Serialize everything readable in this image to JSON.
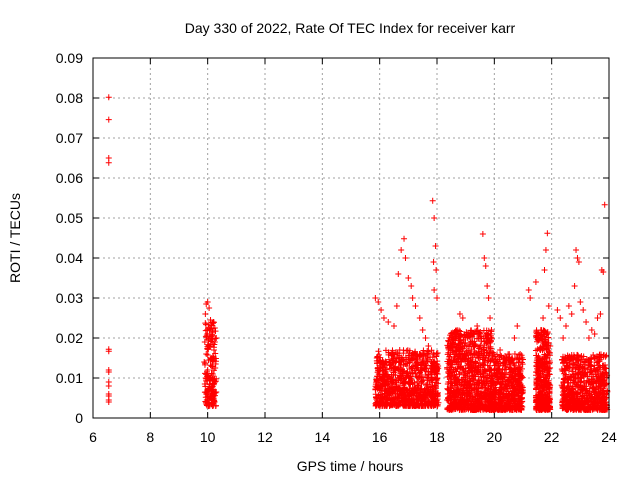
{
  "chart_data": {
    "type": "scatter",
    "title": "Day 330 of 2022, Rate Of TEC Index for receiver karr",
    "xlabel": "GPS time / hours",
    "ylabel": "ROTI / TECUs",
    "xlim": [
      6,
      24
    ],
    "ylim": [
      0,
      0.09
    ],
    "x_ticks": [
      "6",
      "8",
      "10",
      "12",
      "14",
      "16",
      "18",
      "20",
      "22",
      "24"
    ],
    "y_ticks": [
      "0",
      "0.01",
      "0.02",
      "0.03",
      "0.04",
      "0.05",
      "0.06",
      "0.07",
      "0.08",
      "0.09"
    ],
    "grid": true,
    "marker": "+",
    "series_color": "#ff0000",
    "points": [
      [
        6.55,
        0.0802
      ],
      [
        6.55,
        0.0746
      ],
      [
        6.55,
        0.065
      ],
      [
        6.55,
        0.0638
      ],
      [
        6.55,
        0.0172
      ],
      [
        6.55,
        0.0167
      ],
      [
        6.55,
        0.012
      ],
      [
        6.55,
        0.0115
      ],
      [
        6.55,
        0.009
      ],
      [
        6.55,
        0.008
      ],
      [
        6.55,
        0.006
      ],
      [
        6.55,
        0.0055
      ],
      [
        6.55,
        0.0045
      ],
      [
        6.55,
        0.004
      ],
      [
        9.95,
        0.0285
      ],
      [
        10.0,
        0.029
      ],
      [
        10.05,
        0.0275
      ],
      [
        9.92,
        0.026
      ],
      [
        10.1,
        0.0245
      ],
      [
        10.2,
        0.024
      ],
      [
        10.25,
        0.0225
      ],
      [
        9.98,
        0.022
      ],
      [
        10.15,
        0.0205
      ],
      [
        10.3,
        0.02
      ],
      [
        9.9,
        0.019
      ],
      [
        10.05,
        0.018
      ],
      [
        10.22,
        0.017
      ],
      [
        9.95,
        0.016
      ],
      [
        10.12,
        0.015
      ],
      [
        9.88,
        0.014
      ],
      [
        10.28,
        0.0135
      ],
      [
        10.0,
        0.012
      ],
      [
        10.18,
        0.011
      ],
      [
        9.93,
        0.01
      ],
      [
        10.08,
        0.0095
      ],
      [
        10.25,
        0.009
      ],
      [
        9.9,
        0.0085
      ],
      [
        10.15,
        0.008
      ],
      [
        10.02,
        0.007
      ],
      [
        10.3,
        0.0065
      ],
      [
        9.95,
        0.006
      ],
      [
        10.2,
        0.0055
      ],
      [
        10.1,
        0.005
      ],
      [
        9.97,
        0.0045
      ],
      [
        10.24,
        0.004
      ],
      [
        10.05,
        0.0035
      ],
      [
        10.28,
        0.003
      ],
      [
        15.85,
        0.03
      ],
      [
        15.95,
        0.029
      ],
      [
        16.05,
        0.027
      ],
      [
        16.15,
        0.025
      ],
      [
        16.3,
        0.024
      ],
      [
        16.5,
        0.023
      ],
      [
        16.6,
        0.028
      ],
      [
        16.65,
        0.036
      ],
      [
        16.75,
        0.042
      ],
      [
        16.85,
        0.0448
      ],
      [
        16.9,
        0.04
      ],
      [
        17.0,
        0.035
      ],
      [
        17.1,
        0.033
      ],
      [
        17.15,
        0.03
      ],
      [
        17.25,
        0.028
      ],
      [
        17.4,
        0.025
      ],
      [
        17.5,
        0.022
      ],
      [
        17.6,
        0.02
      ],
      [
        17.7,
        0.018
      ],
      [
        17.85,
        0.0543
      ],
      [
        17.9,
        0.05
      ],
      [
        17.95,
        0.043
      ],
      [
        17.88,
        0.039
      ],
      [
        17.97,
        0.037
      ],
      [
        17.9,
        0.032
      ],
      [
        18.0,
        0.03
      ],
      [
        15.9,
        0.015
      ],
      [
        16.0,
        0.01
      ],
      [
        16.1,
        0.008
      ],
      [
        16.2,
        0.012
      ],
      [
        16.35,
        0.006
      ],
      [
        16.45,
        0.014
      ],
      [
        16.55,
        0.009
      ],
      [
        16.7,
        0.017
      ],
      [
        16.8,
        0.007
      ],
      [
        16.95,
        0.013
      ],
      [
        17.05,
        0.01
      ],
      [
        17.2,
        0.016
      ],
      [
        17.3,
        0.008
      ],
      [
        17.45,
        0.012
      ],
      [
        17.55,
        0.005
      ],
      [
        17.65,
        0.015
      ],
      [
        17.75,
        0.009
      ],
      [
        17.82,
        0.013
      ],
      [
        17.92,
        0.006
      ],
      [
        18.02,
        0.011
      ],
      [
        18.4,
        0.005
      ],
      [
        18.5,
        0.003
      ],
      [
        18.6,
        0.018
      ],
      [
        18.7,
        0.022
      ],
      [
        18.8,
        0.026
      ],
      [
        18.9,
        0.025
      ],
      [
        19.0,
        0.02
      ],
      [
        19.1,
        0.015
      ],
      [
        19.2,
        0.021
      ],
      [
        19.3,
        0.018
      ],
      [
        19.4,
        0.023
      ],
      [
        19.5,
        0.02
      ],
      [
        19.6,
        0.046
      ],
      [
        19.65,
        0.04
      ],
      [
        19.7,
        0.038
      ],
      [
        19.75,
        0.033
      ],
      [
        19.8,
        0.03
      ],
      [
        19.85,
        0.025
      ],
      [
        19.9,
        0.022
      ],
      [
        18.45,
        0.012
      ],
      [
        18.55,
        0.008
      ],
      [
        18.65,
        0.01
      ],
      [
        18.75,
        0.006
      ],
      [
        18.85,
        0.014
      ],
      [
        18.95,
        0.009
      ],
      [
        19.05,
        0.011
      ],
      [
        19.15,
        0.007
      ],
      [
        19.25,
        0.013
      ],
      [
        19.35,
        0.005
      ],
      [
        19.45,
        0.012
      ],
      [
        19.55,
        0.008
      ],
      [
        19.7,
        0.01
      ],
      [
        19.8,
        0.006
      ],
      [
        19.95,
        0.015
      ],
      [
        20.1,
        0.011
      ],
      [
        20.2,
        0.017
      ],
      [
        20.3,
        0.009
      ],
      [
        20.4,
        0.014
      ],
      [
        20.5,
        0.006
      ],
      [
        20.6,
        0.012
      ],
      [
        20.7,
        0.02
      ],
      [
        20.8,
        0.023
      ],
      [
        20.9,
        0.016
      ],
      [
        20.65,
        0.008
      ],
      [
        20.75,
        0.004
      ],
      [
        20.85,
        0.011
      ],
      [
        21.2,
        0.032
      ],
      [
        21.25,
        0.03
      ],
      [
        21.45,
        0.034
      ],
      [
        21.6,
        0.02
      ],
      [
        21.7,
        0.025
      ],
      [
        21.75,
        0.037
      ],
      [
        21.8,
        0.042
      ],
      [
        21.85,
        0.0462
      ],
      [
        21.9,
        0.028
      ],
      [
        21.95,
        0.018
      ],
      [
        21.5,
        0.015
      ],
      [
        21.55,
        0.01
      ],
      [
        21.65,
        0.006
      ],
      [
        21.75,
        0.012
      ],
      [
        21.85,
        0.008
      ],
      [
        21.92,
        0.003
      ],
      [
        21.58,
        0.005
      ],
      [
        21.68,
        0.017
      ],
      [
        21.8,
        0.014
      ],
      [
        22.2,
        0.027
      ],
      [
        22.3,
        0.025
      ],
      [
        22.4,
        0.02
      ],
      [
        22.5,
        0.023
      ],
      [
        22.6,
        0.028
      ],
      [
        22.7,
        0.026
      ],
      [
        22.8,
        0.033
      ],
      [
        22.85,
        0.042
      ],
      [
        22.9,
        0.04
      ],
      [
        22.95,
        0.039
      ],
      [
        23.0,
        0.029
      ],
      [
        23.1,
        0.027
      ],
      [
        23.2,
        0.024
      ],
      [
        23.3,
        0.02
      ],
      [
        23.4,
        0.022
      ],
      [
        23.5,
        0.021
      ],
      [
        23.6,
        0.025
      ],
      [
        23.7,
        0.026
      ],
      [
        23.75,
        0.037
      ],
      [
        23.8,
        0.0365
      ],
      [
        23.85,
        0.0533
      ],
      [
        22.45,
        0.012
      ],
      [
        22.55,
        0.008
      ],
      [
        22.65,
        0.015
      ],
      [
        22.75,
        0.006
      ],
      [
        22.85,
        0.01
      ],
      [
        22.95,
        0.013
      ],
      [
        23.05,
        0.007
      ],
      [
        23.15,
        0.011
      ],
      [
        23.25,
        0.005
      ],
      [
        23.35,
        0.014
      ],
      [
        23.45,
        0.009
      ],
      [
        23.55,
        0.012
      ],
      [
        23.65,
        0.006
      ],
      [
        23.75,
        0.01
      ],
      [
        23.85,
        0.008
      ],
      [
        23.9,
        0.004
      ]
    ],
    "dense_bands": [
      [
        9.9,
        10.3,
        0.003,
        0.024,
        160
      ],
      [
        15.85,
        18.05,
        0.003,
        0.017,
        900
      ],
      [
        18.35,
        19.95,
        0.002,
        0.022,
        900
      ],
      [
        19.95,
        21.0,
        0.002,
        0.016,
        500
      ],
      [
        21.45,
        21.95,
        0.002,
        0.022,
        400
      ],
      [
        22.35,
        23.95,
        0.002,
        0.016,
        700
      ]
    ]
  }
}
